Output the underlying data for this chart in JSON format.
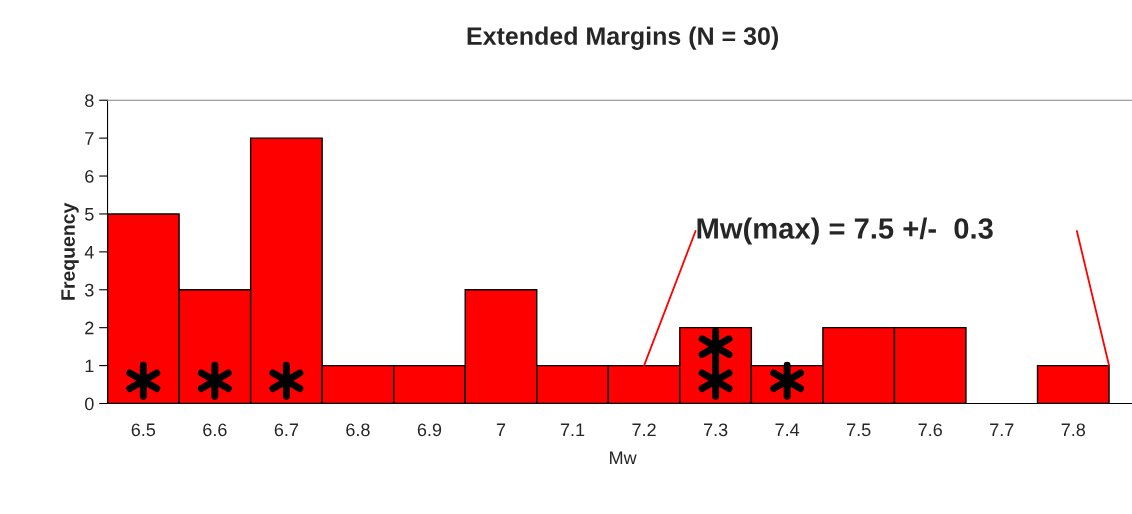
{
  "chart_data": {
    "type": "bar",
    "title": "Extended Margins (N = 30)",
    "xlabel": "Mw",
    "ylabel": "Frequency",
    "categories": [
      "6.5",
      "6.6",
      "6.7",
      "6.8",
      "6.9",
      "7",
      "7.1",
      "7.2",
      "7.3",
      "7.4",
      "7.5",
      "7.6",
      "7.7",
      "7.8"
    ],
    "series": [
      {
        "color": "#ff0000",
        "values": [
          5,
          3,
          7,
          1,
          1,
          3,
          1,
          1,
          2,
          1,
          2,
          2,
          0,
          1
        ]
      },
      {
        "type": "scatter",
        "color": "#000000",
        "marker": "cross",
        "x": [
          "6.5",
          "6.6",
          "6.7",
          "7.3",
          "7.3",
          "7.4"
        ],
        "values": [
          0.6,
          0.6,
          0.6,
          0.6,
          1.5,
          0.6
        ]
      }
    ],
    "ylim": [
      0,
      8
    ],
    "yticks": [
      0,
      1,
      2,
      3,
      4,
      5,
      6,
      7,
      8
    ],
    "grid": false,
    "legend": false,
    "annotations": [
      {
        "text": "Mw(max) = 7.5 +/-  0.3",
        "x": "7.2",
        "y": 1
      }
    ]
  }
}
